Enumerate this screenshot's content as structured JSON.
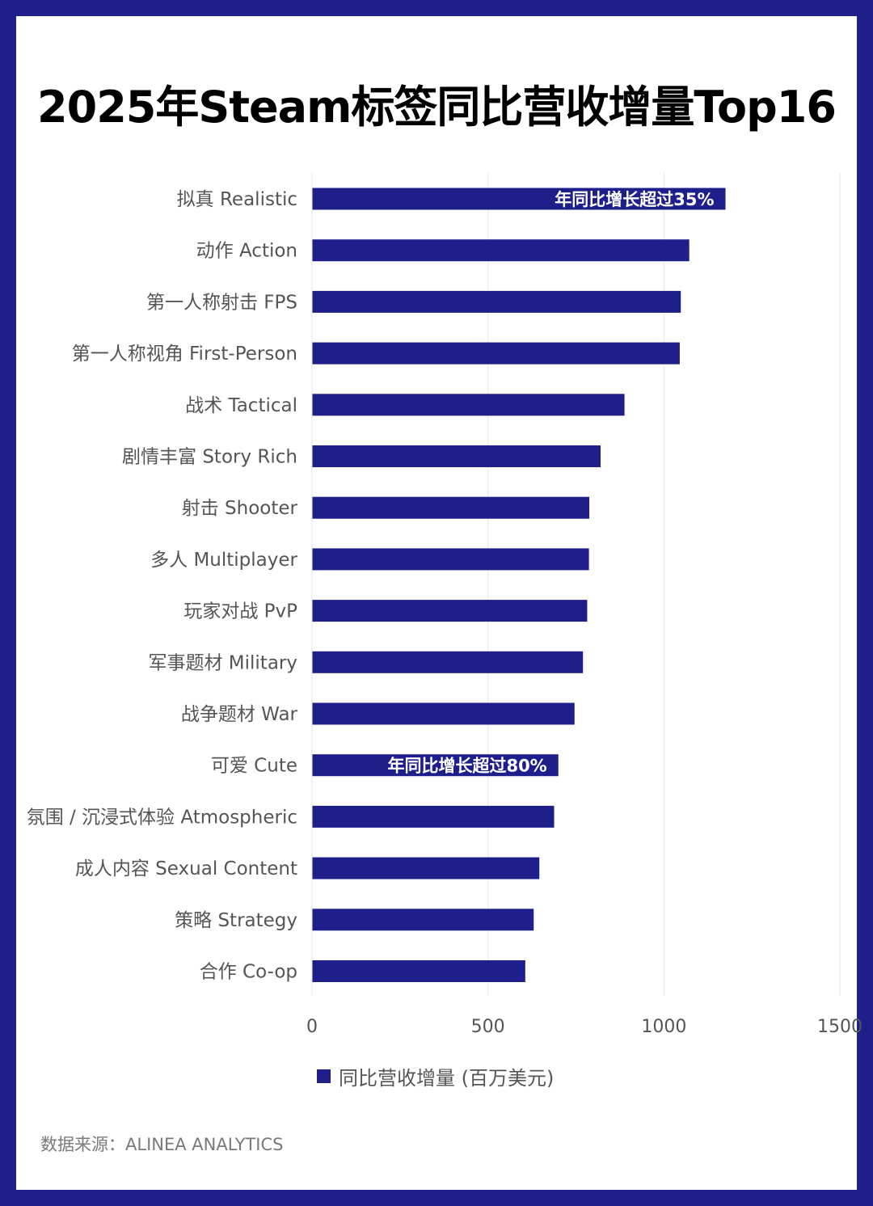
{
  "title": "2025年Steam标签同比营收增量Top16",
  "source": "数据来源：ALINEA ANALYTICS",
  "colors": {
    "bar": "#1e1f8a",
    "frame": "#1e1f8a",
    "grid": "#e6e6e6",
    "label": "#555555"
  },
  "chart_data": {
    "type": "bar",
    "orientation": "horizontal",
    "categories": [
      "拟真 Realistic",
      "动作 Action",
      "第一人称射击 FPS",
      "第一人称视角 First-Person",
      "战术 Tactical",
      "剧情丰富 Story Rich",
      "射击 Shooter",
      "多人 Multiplayer",
      "玩家对战 PvP",
      "军事题材 Military",
      "战争题材 War",
      "可爱 Cute",
      "氛围 / 沉浸式体验 Atmospheric",
      "成人内容 Sexual Content",
      "策略 Strategy",
      "合作 Co-op"
    ],
    "series": [
      {
        "name": "同比营收增量 (百万美元)",
        "values": [
          1175,
          1072,
          1048,
          1045,
          888,
          820,
          788,
          787,
          782,
          770,
          746,
          700,
          688,
          646,
          630,
          606
        ]
      }
    ],
    "xlim": [
      0,
      1500
    ],
    "xticks": [
      "0",
      "500",
      "1000",
      "1500"
    ],
    "grid": true,
    "legend": "bottom",
    "annotations": [
      {
        "category_index": 0,
        "text": "年同比增长超过35%"
      },
      {
        "category_index": 11,
        "text": "年同比增长超过80%"
      }
    ]
  }
}
